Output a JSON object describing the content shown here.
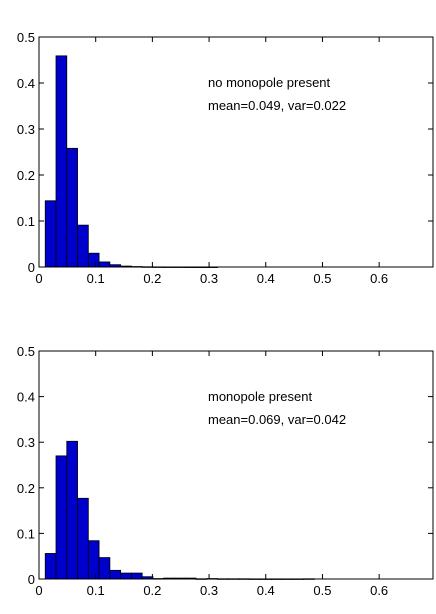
{
  "chart_data": [
    {
      "type": "bar",
      "bin_width": 0.019,
      "x": [
        0.0205,
        0.0395,
        0.0585,
        0.0775,
        0.0965,
        0.1155,
        0.1345,
        0.1535,
        0.1725,
        0.1915,
        0.2105,
        0.2295,
        0.2485,
        0.2675,
        0.2865,
        0.3055
      ],
      "values": [
        0.144,
        0.459,
        0.258,
        0.091,
        0.03,
        0.011,
        0.005,
        0.002,
        0.001,
        0.0005,
        0.0003,
        0.0002,
        0.0002,
        0.0001,
        0.0001,
        0.0001
      ],
      "xlim": [
        0,
        0.695
      ],
      "ylim": [
        0,
        0.5
      ],
      "xticks": [
        "0",
        "0.1",
        "0.2",
        "0.3",
        "0.4",
        "0.5",
        "0.6"
      ],
      "xtick_values": [
        0,
        0.1,
        0.2,
        0.3,
        0.4,
        0.5,
        0.6
      ],
      "yticks": [
        "0",
        "0.1",
        "0.2",
        "0.3",
        "0.4",
        "0.5"
      ],
      "ytick_values": [
        0,
        0.1,
        0.2,
        0.3,
        0.4,
        0.5
      ],
      "annotations": [
        "no monopole present",
        "mean=0.049, var=0.022"
      ],
      "grid": false,
      "color": "#0000cc"
    },
    {
      "type": "bar",
      "bin_width": 0.019,
      "x": [
        0.0205,
        0.0395,
        0.0585,
        0.0775,
        0.0965,
        0.1155,
        0.1345,
        0.1535,
        0.1725,
        0.1915,
        0.2105,
        0.2295,
        0.2485,
        0.2675,
        0.2865,
        0.3055,
        0.3245,
        0.3435,
        0.3625,
        0.3815,
        0.4005,
        0.4195,
        0.4385,
        0.4575,
        0.4765
      ],
      "values": [
        0.056,
        0.27,
        0.302,
        0.177,
        0.084,
        0.047,
        0.019,
        0.013,
        0.013,
        0.005,
        0.001,
        0.002,
        0.002,
        0.002,
        0.0005,
        0.001,
        0.0005,
        0.0005,
        0.0005,
        0.0003,
        0.0003,
        0.0003,
        0.0003,
        0.0003,
        0.0005
      ],
      "xlim": [
        0,
        0.695
      ],
      "ylim": [
        0,
        0.5
      ],
      "xticks": [
        "0",
        "0.1",
        "0.2",
        "0.3",
        "0.4",
        "0.5",
        "0.6"
      ],
      "xtick_values": [
        0,
        0.1,
        0.2,
        0.3,
        0.4,
        0.5,
        0.6
      ],
      "yticks": [
        "0",
        "0.1",
        "0.2",
        "0.3",
        "0.4",
        "0.5"
      ],
      "ytick_values": [
        0,
        0.1,
        0.2,
        0.3,
        0.4,
        0.5
      ],
      "annotations": [
        "monopole present",
        "mean=0.069, var=0.042"
      ],
      "grid": false,
      "color": "#0000cc"
    }
  ]
}
